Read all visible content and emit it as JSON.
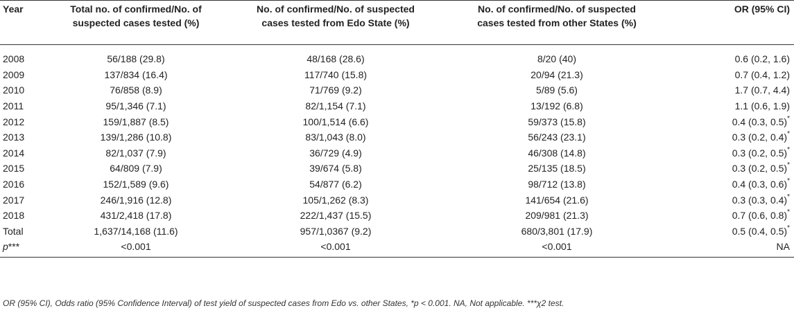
{
  "table": {
    "headers": {
      "year": "Year",
      "total": [
        "Total no. of confirmed/No. of",
        "suspected cases tested (%)"
      ],
      "edo": [
        "No. of confirmed/No. of suspected",
        "cases tested from Edo State (%)"
      ],
      "other": [
        "No. of confirmed/No. of suspected",
        "cases tested from other States (%)"
      ],
      "or": "OR (95% CI)"
    },
    "rows": [
      {
        "year": "2008",
        "total": "56/188 (29.8)",
        "edo": "48/168 (28.6)",
        "other": "8/20 (40)",
        "or": "0.6 (0.2, 1.6)",
        "star": ""
      },
      {
        "year": "2009",
        "total": "137/834 (16.4)",
        "edo": "117/740 (15.8)",
        "other": "20/94 (21.3)",
        "or": "0.7 (0.4, 1.2)",
        "star": ""
      },
      {
        "year": "2010",
        "total": "76/858 (8.9)",
        "edo": "71/769 (9.2)",
        "other": "5/89 (5.6)",
        "or": "1.7 (0.7, 4.4)",
        "star": ""
      },
      {
        "year": "2011",
        "total": "95/1,346 (7.1)",
        "edo": "82/1,154 (7.1)",
        "other": "13/192 (6.8)",
        "or": "1.1 (0.6, 1.9)",
        "star": ""
      },
      {
        "year": "2012",
        "total": "159/1,887 (8.5)",
        "edo": "100/1,514 (6.6)",
        "other": "59/373 (15.8)",
        "or": "0.4 (0.3, 0.5)",
        "star": "*"
      },
      {
        "year": "2013",
        "total": "139/1,286 (10.8)",
        "edo": "83/1,043 (8.0)",
        "other": "56/243 (23.1)",
        "or": "0.3 (0.2, 0.4)",
        "star": "*"
      },
      {
        "year": "2014",
        "total": "82/1,037 (7.9)",
        "edo": "36/729 (4.9)",
        "other": "46/308 (14.8)",
        "or": "0.3 (0.2, 0.5)",
        "star": "*"
      },
      {
        "year": "2015",
        "total": "64/809 (7.9)",
        "edo": "39/674 (5.8)",
        "other": "25/135 (18.5)",
        "or": "0.3 (0.2, 0.5)",
        "star": "*"
      },
      {
        "year": "2016",
        "total": "152/1,589 (9.6)",
        "edo": "54/877 (6.2)",
        "other": "98/712 (13.8)",
        "or": "0.4 (0.3, 0.6)",
        "star": "*"
      },
      {
        "year": "2017",
        "total": "246/1,916 (12.8)",
        "edo": "105/1,262 (8.3)",
        "other": "141/654 (21.6)",
        "or": "0.3 (0.3, 0.4)",
        "star": "*"
      },
      {
        "year": "2018",
        "total": "431/2,418 (17.8)",
        "edo": "222/1,437 (15.5)",
        "other": "209/981 (21.3)",
        "or": "0.7 (0.6, 0.8)",
        "star": "*"
      },
      {
        "year": "Total",
        "total": "1,637/14,168 (11.6)",
        "edo": "957/1,0367 (9.2)",
        "other": "680/3,801 (17.9)",
        "or": "0.5 (0.4, 0.5)",
        "star": "*"
      }
    ],
    "pvalue_row": {
      "label_p": "p",
      "label_stars": "***",
      "total": "<0.001",
      "edo": "<0.001",
      "other": "<0.001",
      "or": "NA"
    }
  },
  "footnote": "OR (95% CI), Odds ratio (95% Confidence Interval) of test yield of suspected cases from Edo vs. other States, *p < 0.001. NA, Not applicable. ***χ2 test."
}
